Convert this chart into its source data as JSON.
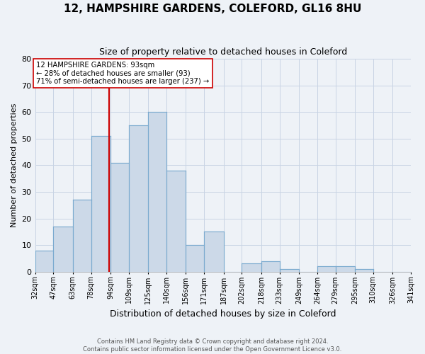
{
  "title": "12, HAMPSHIRE GARDENS, COLEFORD, GL16 8HU",
  "subtitle": "Size of property relative to detached houses in Coleford",
  "xlabel": "Distribution of detached houses by size in Coleford",
  "ylabel": "Number of detached properties",
  "bar_color": "#ccd9e8",
  "bar_edge_color": "#7aaacf",
  "background_color": "#eef2f7",
  "grid_color": "#c8d4e4",
  "bin_labels": [
    "32sqm",
    "47sqm",
    "63sqm",
    "78sqm",
    "94sqm",
    "109sqm",
    "125sqm",
    "140sqm",
    "156sqm",
    "171sqm",
    "187sqm",
    "202sqm",
    "218sqm",
    "233sqm",
    "249sqm",
    "264sqm",
    "279sqm",
    "295sqm",
    "310sqm",
    "326sqm",
    "341sqm"
  ],
  "bin_edges": [
    32,
    47,
    63,
    78,
    94,
    109,
    125,
    140,
    156,
    171,
    187,
    202,
    218,
    233,
    249,
    264,
    279,
    295,
    310,
    326,
    341
  ],
  "bar_heights": [
    8,
    17,
    27,
    51,
    41,
    55,
    60,
    38,
    10,
    15,
    0,
    3,
    4,
    1,
    0,
    2,
    2,
    1,
    0,
    0
  ],
  "property_value": 93,
  "property_line_color": "#cc0000",
  "annotation_line1": "12 HAMPSHIRE GARDENS: 93sqm",
  "annotation_line2": "← 28% of detached houses are smaller (93)",
  "annotation_line3": "71% of semi-detached houses are larger (237) →",
  "annotation_box_color": "#ffffff",
  "annotation_box_edge_color": "#cc0000",
  "ylim": [
    0,
    80
  ],
  "yticks": [
    0,
    10,
    20,
    30,
    40,
    50,
    60,
    70,
    80
  ],
  "footer_line1": "Contains HM Land Registry data © Crown copyright and database right 2024.",
  "footer_line2": "Contains public sector information licensed under the Open Government Licence v3.0."
}
